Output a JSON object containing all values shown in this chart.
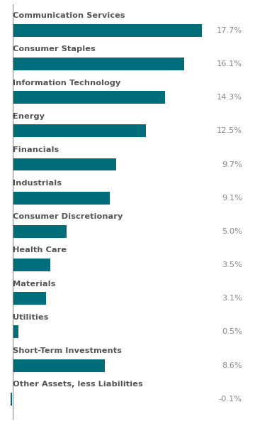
{
  "categories": [
    "Communication Services",
    "Consumer Staples",
    "Information Technology",
    "Energy",
    "Financials",
    "Industrials",
    "Consumer Discretionary",
    "Health Care",
    "Materials",
    "Utilities",
    "Short-Term Investments",
    "Other Assets, less Liabilities"
  ],
  "values": [
    17.7,
    16.1,
    14.3,
    12.5,
    9.7,
    9.1,
    5.0,
    3.5,
    3.1,
    0.5,
    8.6,
    -0.1
  ],
  "labels": [
    "17.7%",
    "16.1%",
    "14.3%",
    "12.5%",
    "9.7%",
    "9.1%",
    "5.0%",
    "3.5%",
    "3.1%",
    "0.5%",
    "8.6%",
    "-0.1%"
  ],
  "bar_color": "#006d7a",
  "label_color": "#888888",
  "category_color": "#555555",
  "background_color": "#ffffff",
  "bar_height": 0.38,
  "xlim": [
    -0.5,
    22
  ],
  "figsize": [
    3.6,
    5.97
  ],
  "dpi": 100,
  "left_line_color": "#888888",
  "cat_fontsize": 8.2,
  "val_fontsize": 8.2
}
